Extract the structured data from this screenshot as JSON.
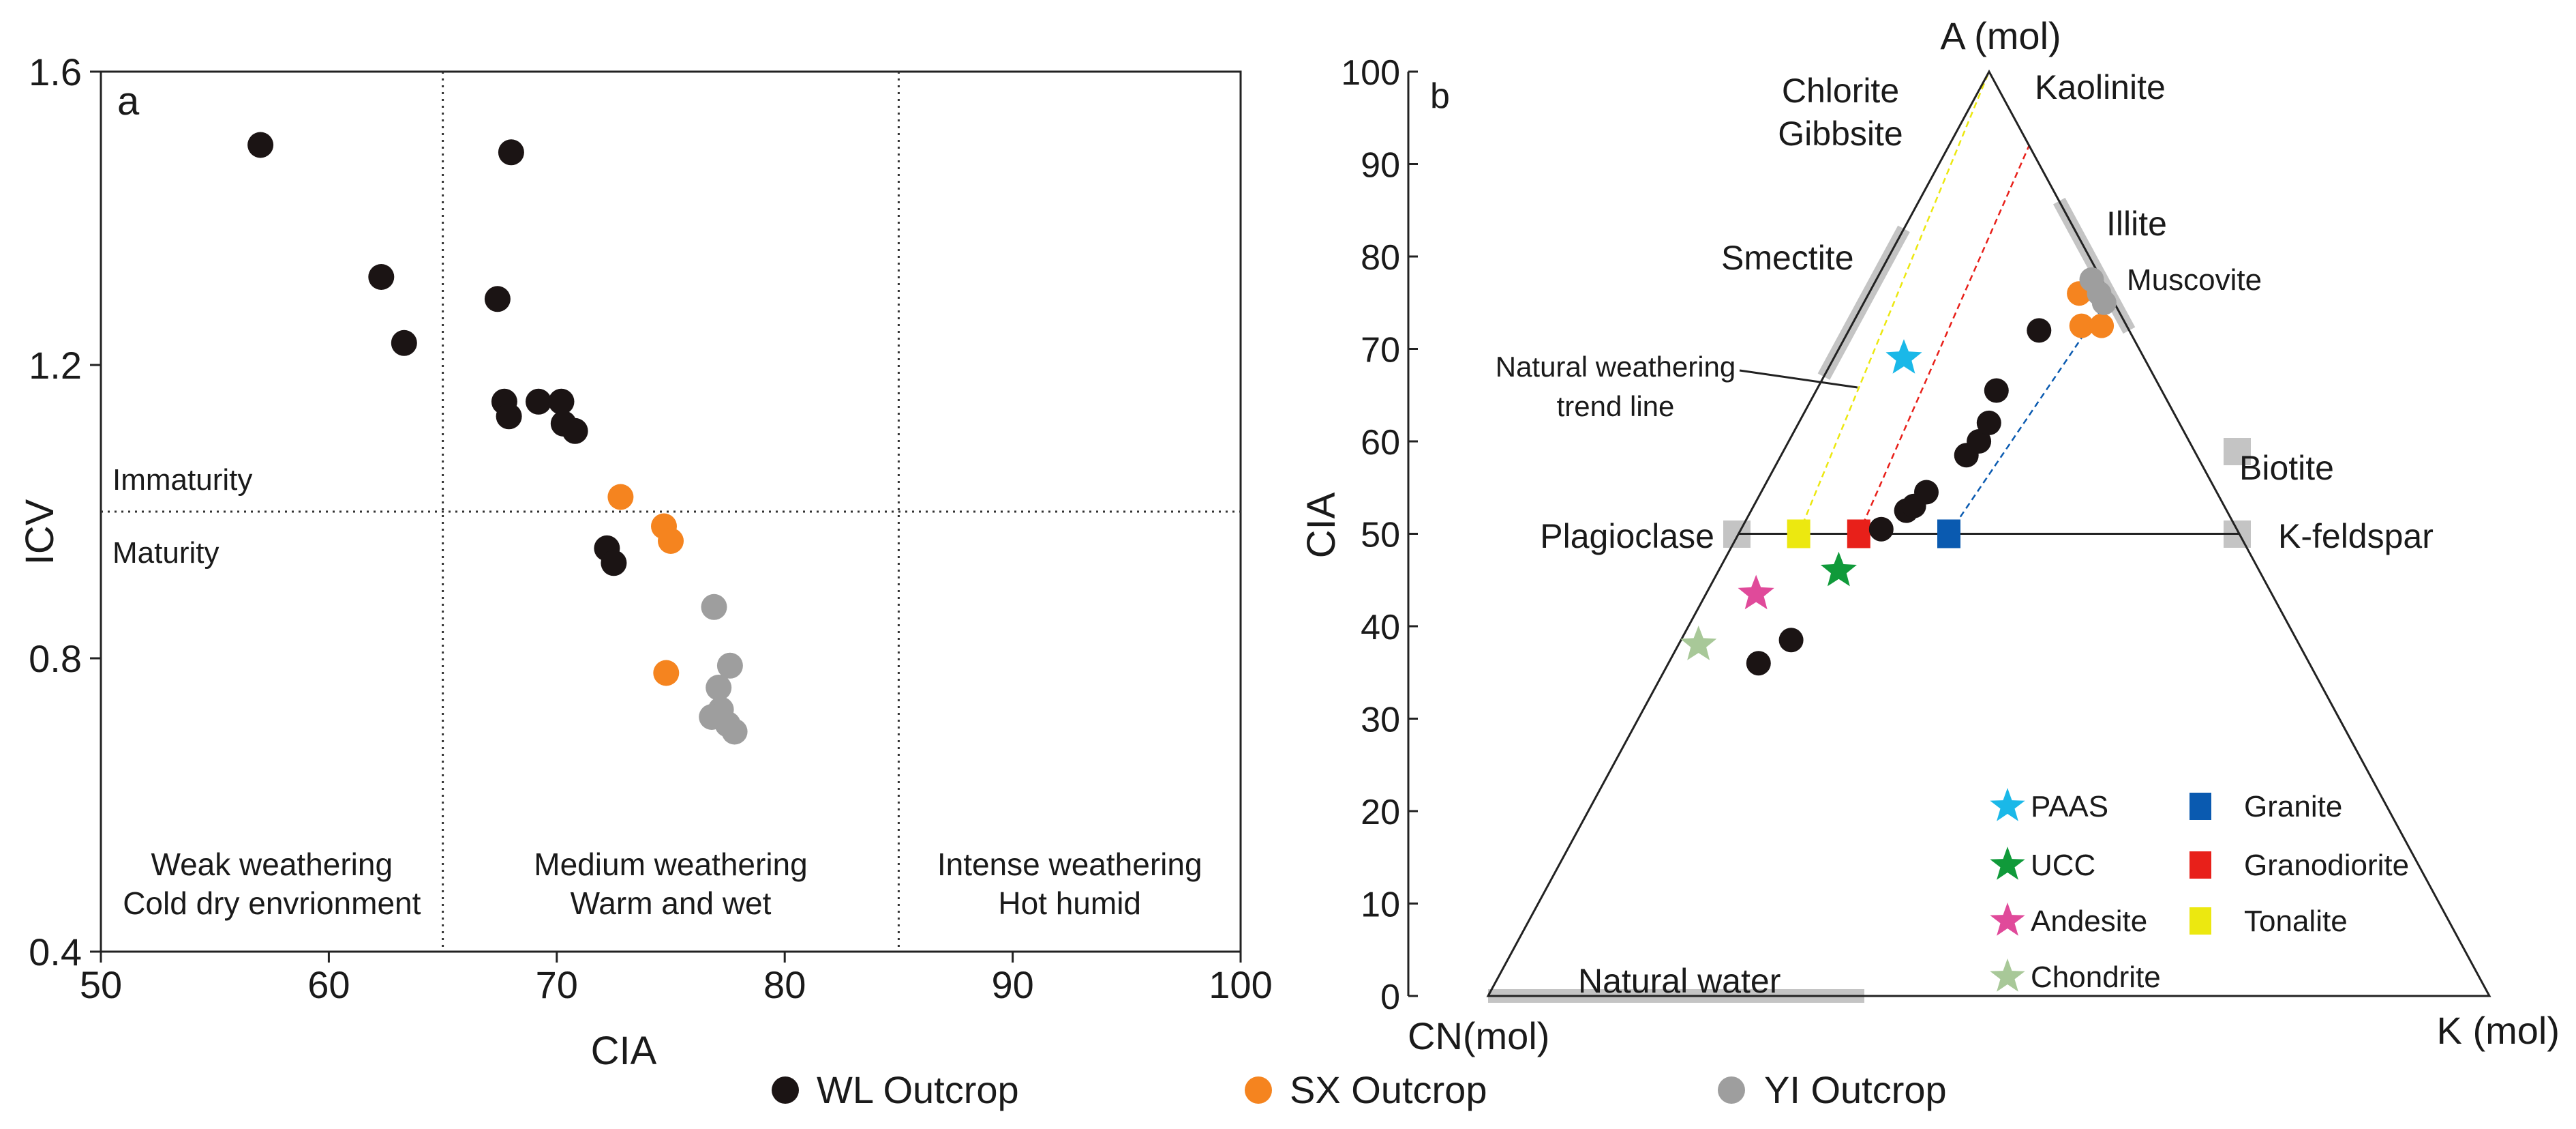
{
  "colors": {
    "wl": "#1b1414",
    "sx": "#f5841f",
    "yi": "#9e9e9e",
    "paas": "#1ab8e8",
    "ucc": "#109a3a",
    "andesite": "#e04a9a",
    "chondrite": "#a8c898",
    "granite": "#0a5ab0",
    "granodiorite": "#e8201a",
    "tonalite": "#ece810",
    "mineral": "#c4c4c4",
    "axis": "#222222"
  },
  "legend": {
    "wl": "WL Outcrop",
    "sx": "SX Outcrop",
    "yi": "YI Outcrop"
  },
  "chart_data": [
    {
      "type": "scatter",
      "panel": "a",
      "xlabel": "CIA",
      "ylabel": "ICV",
      "xlim": [
        50,
        100
      ],
      "ylim": [
        0.4,
        1.6
      ],
      "xticks": [
        50,
        60,
        70,
        80,
        90,
        100
      ],
      "yticks": [
        0.4,
        0.8,
        1.2,
        1.6
      ],
      "ytick_labels": [
        "0.4",
        "0.8",
        "1.2",
        "1.6"
      ],
      "x_dividers": [
        65,
        85
      ],
      "y_divider": 1.0,
      "divider_labels": {
        "above": "Immaturity",
        "below": "Maturity"
      },
      "zones": [
        {
          "x": 57.5,
          "line1": "Weak  weathering",
          "line2": "Cold dry envrionment"
        },
        {
          "x": 75,
          "line1": "Medium  weathering",
          "line2": "Warm  and  wet"
        },
        {
          "x": 92.5,
          "line1": "Intense  weathering",
          "line2": "Hot  humid"
        }
      ],
      "series": [
        {
          "name": "WL Outcrop",
          "key": "wl",
          "points": [
            [
              57,
              1.5
            ],
            [
              62.3,
              1.32
            ],
            [
              63.3,
              1.23
            ],
            [
              68,
              1.49
            ],
            [
              67.4,
              1.29
            ],
            [
              67.7,
              1.15
            ],
            [
              67.9,
              1.13
            ],
            [
              69.2,
              1.15
            ],
            [
              70.2,
              1.15
            ],
            [
              70.3,
              1.12
            ],
            [
              70.8,
              1.11
            ],
            [
              72.2,
              0.95
            ],
            [
              72.5,
              0.93
            ]
          ]
        },
        {
          "name": "SX Outcrop",
          "key": "sx",
          "points": [
            [
              72.8,
              1.02
            ],
            [
              74.7,
              0.98
            ],
            [
              75,
              0.96
            ],
            [
              74.8,
              0.78
            ]
          ]
        },
        {
          "name": "YI Outcrop",
          "key": "yi",
          "points": [
            [
              76.9,
              0.87
            ],
            [
              77.6,
              0.79
            ],
            [
              77.1,
              0.76
            ],
            [
              77.2,
              0.73
            ],
            [
              76.8,
              0.72
            ],
            [
              77.5,
              0.71
            ],
            [
              77.8,
              0.7
            ]
          ]
        }
      ]
    },
    {
      "type": "ternary",
      "panel": "b",
      "ylabel": "CIA",
      "vertices": {
        "top": "A (mol)",
        "left": "CN(mol)",
        "right": "K (mol)"
      },
      "cia_ticks": [
        0,
        10,
        20,
        30,
        40,
        50,
        60,
        70,
        80,
        90,
        100
      ],
      "feldspar_join_cia": 50,
      "minerals": [
        {
          "label": "Chlorite",
          "a": 100,
          "k": 0
        },
        {
          "label": "Gibbsite",
          "a": 100,
          "k": 0
        },
        {
          "label": "Kaolinite",
          "a": 100,
          "k": 0
        },
        {
          "label": "Smectite",
          "a": 75,
          "k": 0
        },
        {
          "label": "Illite",
          "a": 80,
          "k": 20
        },
        {
          "label": "Muscovite",
          "a": 75,
          "k": 25
        },
        {
          "label": "Biotite",
          "a": 59,
          "k": 41
        },
        {
          "label": "Plagioclase",
          "a": 50,
          "k": 0
        },
        {
          "label": "K-feldspar",
          "a": 50,
          "k": 50
        },
        {
          "label": "Natural water",
          "a": 0,
          "k": 0
        }
      ],
      "annotation": "Natural weathering trend line",
      "annotation_lines": [
        "Natural weathering",
        "trend line"
      ],
      "trend_lines": [
        {
          "name": "Tonalite",
          "from": [
            50,
            6
          ],
          "to": [
            100,
            0
          ]
        },
        {
          "name": "Granodiorite",
          "from": [
            50,
            12
          ],
          "to": [
            92,
            8
          ]
        },
        {
          "name": "Granite",
          "from": [
            50,
            21
          ],
          "to": [
            74,
            24
          ]
        }
      ],
      "references": [
        {
          "name": "PAAS",
          "marker": "star",
          "key": "paas",
          "a": 69,
          "k": 7
        },
        {
          "name": "UCC",
          "marker": "star",
          "key": "ucc",
          "a": 46,
          "k": 12
        },
        {
          "name": "Andesite",
          "marker": "star",
          "key": "andesite",
          "a": 43.5,
          "k": 5
        },
        {
          "name": "Chondrite",
          "marker": "star",
          "key": "chondrite",
          "a": 38,
          "k": 2
        },
        {
          "name": "Granite",
          "marker": "square",
          "key": "granite",
          "a": 50,
          "k": 21
        },
        {
          "name": "Granodiorite",
          "marker": "square",
          "key": "granodiorite",
          "a": 50,
          "k": 12
        },
        {
          "name": "Tonalite",
          "marker": "square",
          "key": "tonalite",
          "a": 50,
          "k": 6
        }
      ],
      "legend_items": [
        "PAAS",
        "UCC",
        "Andesite",
        "Chondrite",
        "Granite",
        "Granodiorite",
        "Tonalite"
      ],
      "series": [
        {
          "name": "WL Outcrop",
          "key": "wl",
          "points": [
            [
              36,
              9
            ],
            [
              38.5,
              11
            ],
            [
              50.5,
              14
            ],
            [
              52.5,
              15.5
            ],
            [
              53,
              16
            ],
            [
              54.5,
              16.5
            ],
            [
              58.5,
              18.5
            ],
            [
              60,
              19
            ],
            [
              62,
              19
            ],
            [
              65.5,
              18
            ],
            [
              72,
              19
            ]
          ]
        },
        {
          "name": "SX Outcrop",
          "key": "sx",
          "points": [
            [
              76,
              21
            ],
            [
              72.5,
              23
            ],
            [
              72.5,
              25
            ]
          ]
        },
        {
          "name": "YI Outcrop",
          "key": "yi",
          "points": [
            [
              77.5,
              21.5
            ],
            [
              76,
              23
            ],
            [
              75,
              24
            ]
          ]
        }
      ]
    }
  ]
}
